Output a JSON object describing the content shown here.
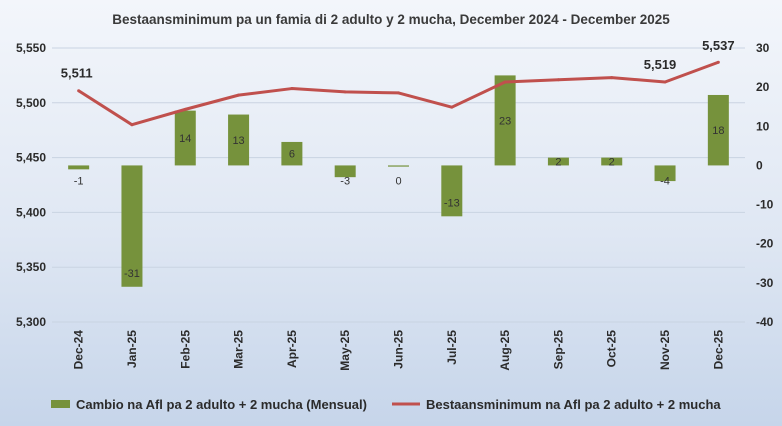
{
  "chart_data": {
    "type": "bar+line",
    "title": "Bestaansminimum pa un famia di 2 adulto y 2 mucha, December 2024 - December 2025",
    "categories": [
      "Dec-24",
      "Jan-25",
      "Feb-25",
      "Mar-25",
      "Apr-25",
      "May-25",
      "Jun-25",
      "Jul-25",
      "Aug-25",
      "Sep-25",
      "Oct-25",
      "Nov-25",
      "Dec-25"
    ],
    "series": [
      {
        "name": "Cambio na Afl pa 2 adulto  + 2 mucha (Mensual)",
        "type": "bar",
        "axis": "right",
        "color": "#76923c",
        "values": [
          -1,
          -31,
          14,
          13,
          6,
          -3,
          0,
          -13,
          23,
          2,
          2,
          -4,
          18
        ],
        "labels": [
          "-1",
          "-31",
          "14",
          "13",
          "6",
          "-3",
          "0",
          "-13",
          "23",
          "2",
          "2",
          "-4",
          "18"
        ]
      },
      {
        "name": "Bestaansminimum na Afl pa 2 adulto  + 2 mucha",
        "type": "line",
        "axis": "left",
        "color": "#c0504d",
        "values": [
          5511,
          5480,
          5494,
          5507,
          5513,
          5510,
          5509,
          5496,
          5519,
          5521,
          5523,
          5519,
          5537
        ],
        "point_labels": [
          {
            "index": 0,
            "text": "5,511"
          },
          {
            "index": 11,
            "text": "5,519"
          },
          {
            "index": 12,
            "text": "5,537"
          }
        ]
      }
    ],
    "y_left": {
      "min": 5300,
      "max": 5550,
      "step": 50,
      "ticks": [
        "5,300",
        "5,350",
        "5,400",
        "5,450",
        "5,500",
        "5,550"
      ]
    },
    "y_right": {
      "min": -40,
      "max": 30,
      "step": 10,
      "ticks": [
        "-40",
        "-30",
        "-20",
        "-10",
        "0",
        "10",
        "20",
        "30"
      ]
    },
    "grid": true,
    "legend": "bottom"
  }
}
